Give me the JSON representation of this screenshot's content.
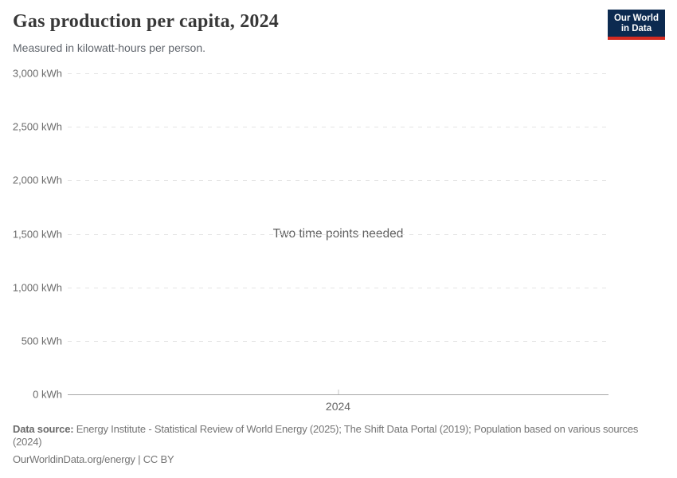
{
  "header": {
    "title": "Gas production per capita, 2024",
    "subtitle": "Measured in kilowatt-hours per person."
  },
  "logo": {
    "line1": "Our World",
    "line2": "in Data",
    "bg_color": "#0c2a50",
    "accent_color": "#d42b21"
  },
  "chart_data": {
    "type": "line",
    "title": "Gas production per capita, 2024",
    "subtitle": "Measured in kilowatt-hours per person.",
    "unit": "kWh",
    "ylim": [
      0,
      3000
    ],
    "ytick_interval": 500,
    "yticks": [
      {
        "value": 3000,
        "label": "3,000 kWh"
      },
      {
        "value": 2500,
        "label": "2,500 kWh"
      },
      {
        "value": 2000,
        "label": "2,000 kWh"
      },
      {
        "value": 1500,
        "label": "1,500 kWh"
      },
      {
        "value": 1000,
        "label": "1,000 kWh"
      },
      {
        "value": 500,
        "label": "500 kWh"
      },
      {
        "value": 0,
        "label": "0 kWh"
      }
    ],
    "xticks": [
      {
        "value": 2024,
        "label": "2024"
      }
    ],
    "series": [],
    "empty_message": "Two time points needed",
    "grid": true,
    "grid_style": "dashed",
    "legend": "none"
  },
  "footer": {
    "data_source_label": "Data source:",
    "data_source_text": "Energy Institute - Statistical Review of World Energy (2025); The Shift Data Portal (2019); Population based on various sources (2024)",
    "citation": "OurWorldinData.org/energy | CC BY"
  }
}
